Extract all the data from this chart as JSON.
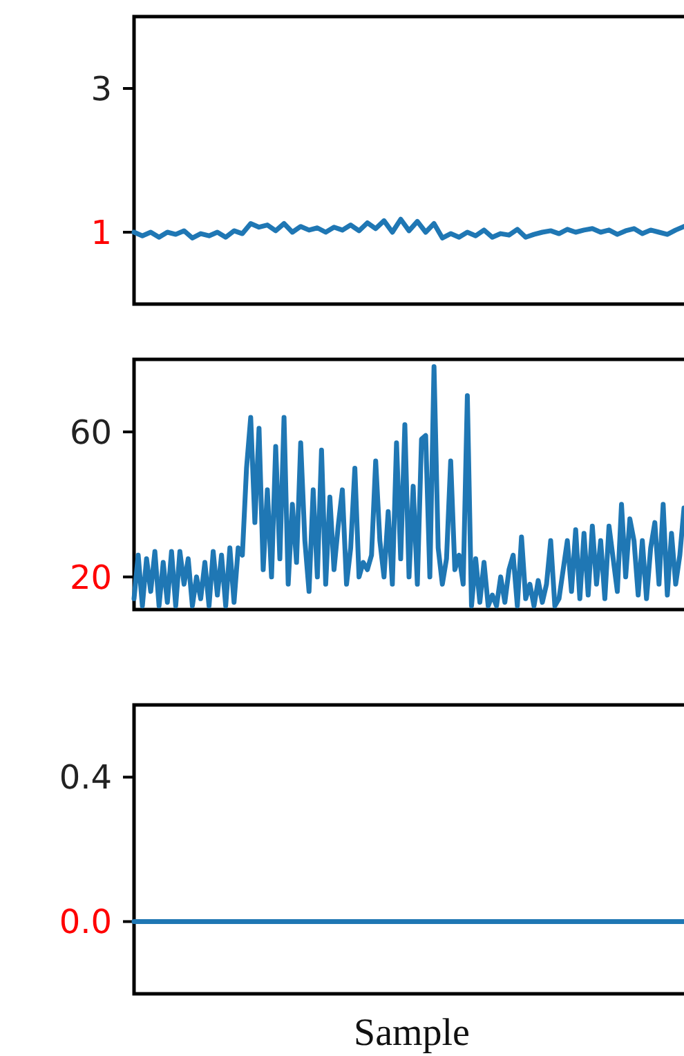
{
  "chart_data": [
    {
      "type": "line",
      "categories": [
        null,
        null,
        null,
        null,
        null,
        null,
        null,
        null,
        null,
        null,
        null,
        null,
        null,
        null,
        null,
        null,
        null,
        null,
        null,
        null,
        null,
        null,
        null,
        null,
        null,
        null,
        null,
        null,
        null,
        null,
        null,
        null,
        null,
        null,
        null,
        null,
        null,
        null,
        null,
        null,
        null,
        null,
        null,
        null,
        null,
        null,
        null,
        null,
        null,
        null,
        null,
        null,
        null,
        null,
        null,
        null,
        null,
        null,
        null,
        null,
        null,
        null,
        null,
        null,
        null,
        null,
        null
      ],
      "values": [
        1.0,
        0.95,
        1.0,
        0.93,
        1.0,
        0.97,
        1.02,
        0.92,
        0.98,
        0.95,
        1.0,
        0.93,
        1.02,
        0.98,
        1.12,
        1.07,
        1.1,
        1.02,
        1.12,
        1.0,
        1.08,
        1.03,
        1.06,
        1.0,
        1.07,
        1.03,
        1.1,
        1.02,
        1.13,
        1.05,
        1.16,
        1.0,
        1.18,
        1.02,
        1.15,
        1.0,
        1.12,
        0.92,
        0.98,
        0.93,
        1.0,
        0.95,
        1.03,
        0.93,
        0.98,
        0.96,
        1.04,
        0.93,
        0.97,
        1.0,
        1.02,
        0.98,
        1.04,
        1.0,
        1.03,
        1.05,
        1.0,
        1.03,
        0.97,
        1.02,
        1.05,
        0.98,
        1.03,
        1.0,
        0.97,
        1.03,
        1.08
      ],
      "color": "#1f77b4",
      "ylim": [
        0,
        4
      ],
      "yticks": [
        3,
        1
      ],
      "tick_labels": "y"
    },
    {
      "type": "line",
      "categories": [
        null,
        null,
        null,
        null,
        null,
        null,
        null,
        null,
        null,
        null,
        null,
        null,
        null,
        null,
        null,
        null,
        null,
        null,
        null,
        null,
        null,
        null,
        null,
        null,
        null,
        null,
        null,
        null,
        null,
        null,
        null,
        null,
        null,
        null,
        null,
        null,
        null,
        null,
        null,
        null,
        null,
        null,
        null,
        null,
        null,
        null,
        null,
        null,
        null,
        null,
        null,
        null,
        null,
        null,
        null,
        null,
        null,
        null,
        null,
        null,
        null,
        null,
        null,
        null,
        null,
        null,
        null,
        null,
        null,
        null,
        null,
        null,
        null,
        null,
        null,
        null,
        null,
        null,
        null,
        null,
        null,
        null,
        null,
        null,
        null,
        null,
        null,
        null,
        null,
        null,
        null,
        null,
        null,
        null,
        null,
        null,
        null,
        null,
        null,
        null,
        null,
        null,
        null,
        null,
        null,
        null,
        null,
        null,
        null,
        null,
        null,
        null,
        null,
        null,
        null,
        null,
        null,
        null,
        null,
        null,
        null,
        null,
        null,
        null,
        null,
        null,
        null,
        null,
        null,
        null,
        null,
        null,
        null
      ],
      "values": [
        14,
        26,
        12,
        25,
        16,
        27,
        12,
        24,
        13,
        27,
        12,
        27,
        18,
        25,
        12,
        20,
        14,
        24,
        12,
        27,
        15,
        26,
        12,
        28,
        13,
        28,
        26,
        50,
        64,
        35,
        61,
        22,
        44,
        20,
        56,
        25,
        64,
        18,
        40,
        24,
        57,
        30,
        16,
        44,
        20,
        55,
        18,
        42,
        22,
        34,
        44,
        18,
        28,
        50,
        20,
        24,
        22,
        26,
        52,
        30,
        20,
        38,
        18,
        57,
        25,
        62,
        20,
        45,
        18,
        58,
        59,
        20,
        78,
        28,
        18,
        25,
        52,
        22,
        26,
        18,
        70,
        12,
        25,
        13,
        24,
        12,
        15,
        12,
        20,
        13,
        22,
        26,
        12,
        31,
        14,
        18,
        12,
        19,
        13,
        18,
        30,
        12,
        14,
        22,
        30,
        16,
        33,
        14,
        32,
        15,
        34,
        18,
        30,
        14,
        34,
        25,
        16,
        40,
        20,
        36,
        30,
        15,
        30,
        14,
        28,
        35,
        18,
        40,
        15,
        32,
        18,
        26,
        39
      ],
      "color": "#1f77b4",
      "ylim": [
        11,
        80
      ],
      "yticks": [
        60,
        20
      ],
      "tick_labels": "y"
    },
    {
      "type": "line",
      "categories": [
        null,
        null,
        null,
        null,
        null,
        null,
        null,
        null,
        null
      ],
      "values": [
        0,
        0,
        0,
        0,
        0,
        0,
        0,
        0,
        0
      ],
      "color": "#1f77b4",
      "ylim": [
        -0.2,
        0.6
      ],
      "yticks": [
        0.4,
        {
          "value": 0,
          "label": "0.0"
        }
      ],
      "xlabel": "Sample",
      "tick_labels": "y"
    }
  ]
}
